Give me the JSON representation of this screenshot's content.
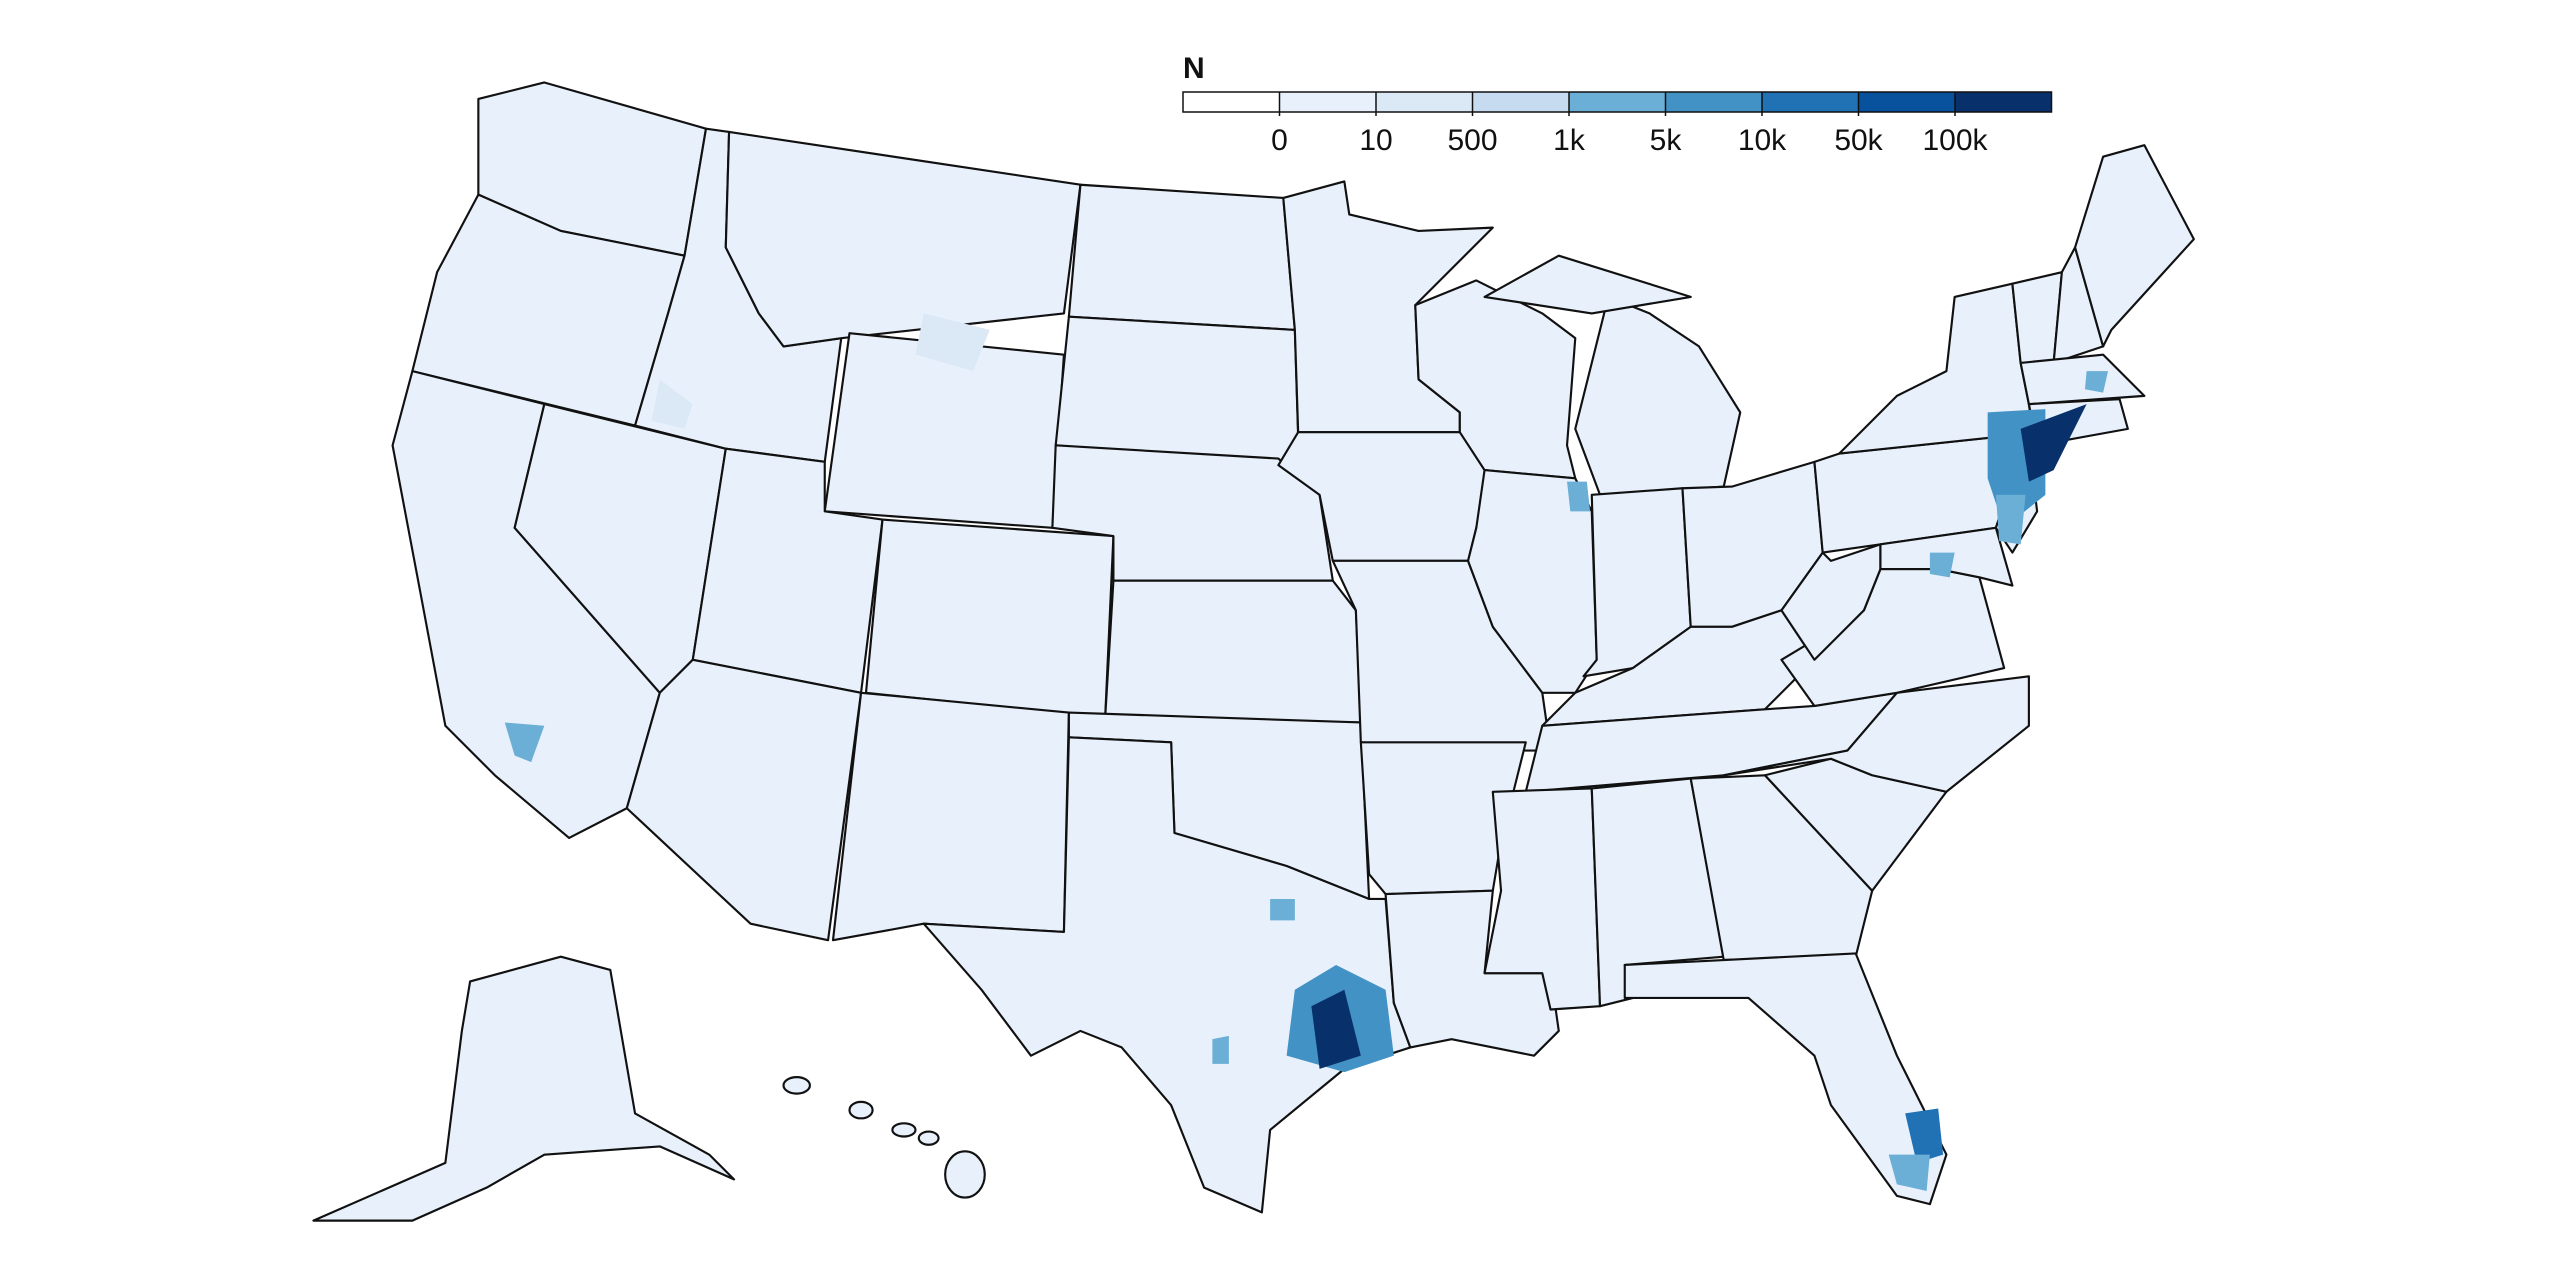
{
  "legend": {
    "title": "N",
    "ticks": [
      0,
      10,
      500,
      {
        "value": 1000,
        "label": "1k"
      },
      {
        "value": 5000,
        "label": "5k"
      },
      {
        "value": 10000,
        "label": "10k"
      },
      {
        "value": 50000,
        "label": "50k"
      },
      {
        "value": 100000,
        "label": "100k"
      }
    ],
    "colors": [
      "#ffffff",
      "#e8f1fb",
      "#dbe9f6",
      "#c6dbef",
      "#6baed6",
      "#4292c6",
      "#2171b5",
      "#08519c",
      "#08306b"
    ]
  }
}
